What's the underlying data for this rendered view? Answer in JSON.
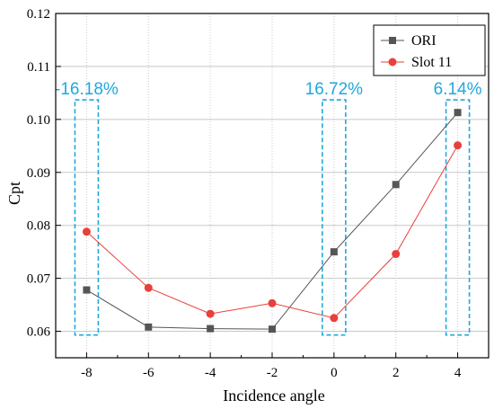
{
  "chart_data": {
    "type": "line",
    "title": "",
    "xlabel": "Incidence angle",
    "ylabel": "Cpt",
    "xlim": [
      -9,
      5
    ],
    "ylim": [
      0.055,
      0.12
    ],
    "x": [
      -8,
      -6,
      -4,
      -2,
      0,
      2,
      4
    ],
    "x_ticks": [
      "-8",
      "-6",
      "-4",
      "-2",
      "0",
      "2",
      "4"
    ],
    "y_ticks": [
      "0.06",
      "0.07",
      "0.08",
      "0.09",
      "0.10",
      "0.11",
      "0.12"
    ],
    "grid": true,
    "legend_position": "top-right",
    "series": [
      {
        "name": "ORI",
        "color": "#555555",
        "marker": "square",
        "values": [
          0.0678,
          0.0608,
          0.0605,
          0.0604,
          0.075,
          0.0877,
          0.1013
        ]
      },
      {
        "name": "Slot 11",
        "color": "#e8403a",
        "marker": "circle",
        "values": [
          0.0788,
          0.0682,
          0.0633,
          0.0653,
          0.0625,
          0.0746,
          0.0951
        ]
      }
    ],
    "annotations": [
      {
        "text": "-16.18%",
        "x": -8,
        "color": "#1fa8e0"
      },
      {
        "text": "16.72%",
        "x": 0,
        "color": "#1fa8e0"
      },
      {
        "text": "6.14%",
        "x": 4,
        "color": "#1fa8e0"
      }
    ]
  }
}
